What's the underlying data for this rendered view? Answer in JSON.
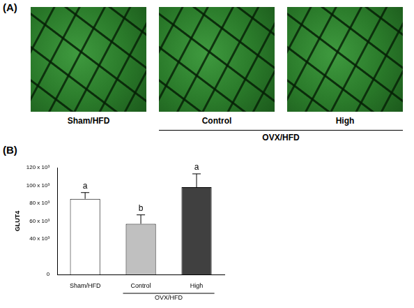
{
  "panel_a": {
    "label": "(A)",
    "image_labels": [
      "Sham/HFD",
      "Control",
      "High"
    ],
    "group": {
      "label": "OVX/HFD",
      "members": [
        "Control",
        "High"
      ]
    }
  },
  "chart_data": {
    "panel_label": "(B)",
    "type": "bar",
    "y_label": "GLUT4",
    "categories": [
      "Sham/HFD",
      "Control",
      "High"
    ],
    "values": [
      85000,
      57000,
      98000
    ],
    "errors": [
      7000,
      10000,
      15000
    ],
    "significance": [
      "a",
      "b",
      "a"
    ],
    "colors": [
      "#ffffff",
      "#c0c0c0",
      "#404040"
    ],
    "x_group": {
      "label": "OVX/HFD",
      "members": [
        "Control",
        "High"
      ]
    },
    "ylim": [
      0,
      120000
    ],
    "yticks": [
      0,
      {
        "value": 40000,
        "label": "40 x 10³"
      },
      {
        "value": 60000,
        "label": "60 x 10³"
      },
      {
        "value": 80000,
        "label": "80 x 10³"
      },
      {
        "value": 100000,
        "label": "100 x 10³"
      },
      {
        "value": 120000,
        "label": "120 x 10³"
      }
    ],
    "grid": false
  }
}
